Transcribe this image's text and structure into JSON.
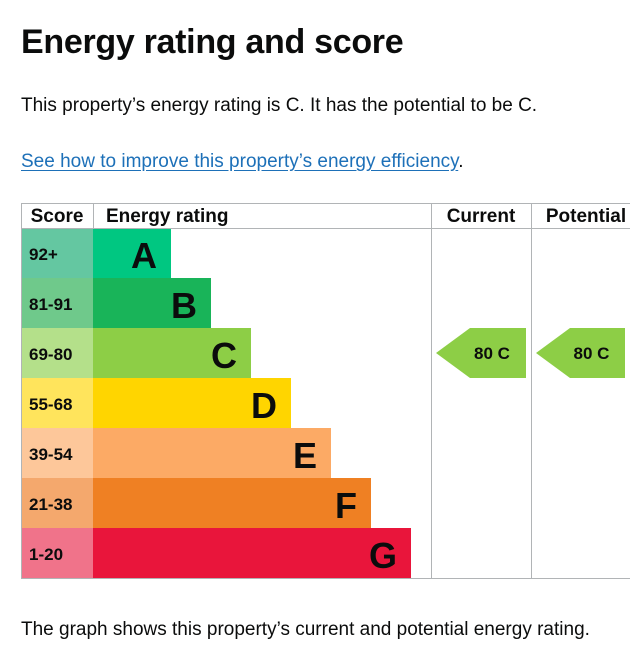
{
  "page": {
    "title": "Energy rating and score",
    "summary": "This property’s energy rating is C. It has the potential to be C.",
    "link_text": "See how to improve this property’s energy efficiency",
    "link_suffix": ".",
    "caption": "The graph shows this property’s current and potential energy rating."
  },
  "chart_data": {
    "type": "bar",
    "headers": {
      "score": "Score",
      "rating": "Energy rating",
      "current": "Current",
      "potential": "Potential"
    },
    "bands": [
      {
        "letter": "A",
        "range": "92+",
        "color": "#00c781",
        "score_bg": "#64c7a1"
      },
      {
        "letter": "B",
        "range": "81-91",
        "color": "#19b459",
        "score_bg": "#6fc98b"
      },
      {
        "letter": "C",
        "range": "69-80",
        "color": "#8dce46",
        "score_bg": "#b4e08a"
      },
      {
        "letter": "D",
        "range": "55-68",
        "color": "#ffd500",
        "score_bg": "#ffe45c"
      },
      {
        "letter": "E",
        "range": "39-54",
        "color": "#fcaa65",
        "score_bg": "#fdc79a"
      },
      {
        "letter": "F",
        "range": "21-38",
        "color": "#ef8023",
        "score_bg": "#f4a86d"
      },
      {
        "letter": "G",
        "range": "1-20",
        "color": "#e9153b",
        "score_bg": "#f0738a"
      }
    ],
    "current": {
      "score": 80,
      "letter": "C",
      "label": "80  C"
    },
    "potential": {
      "score": 80,
      "letter": "C",
      "label": "80  C"
    },
    "arrow_color": "#8dce46"
  }
}
